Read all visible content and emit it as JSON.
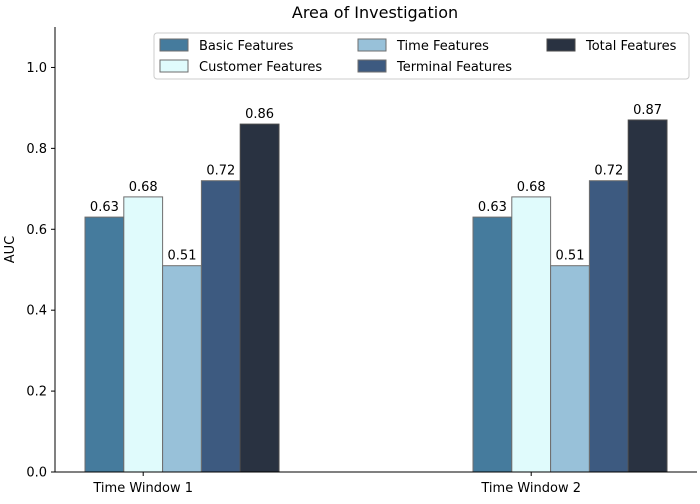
{
  "chart_data": {
    "type": "bar",
    "title": "Area of Investigation",
    "xlabel": "",
    "ylabel": "AUC",
    "ylim": [
      0,
      1.1
    ],
    "yticks": [
      "0.0",
      "0.2",
      "0.4",
      "0.6",
      "0.8",
      "1.0"
    ],
    "ytick_values": [
      0,
      0.2,
      0.4,
      0.6,
      0.8,
      1.0
    ],
    "categories": [
      "Time Window 1",
      "Time Window 2"
    ],
    "grid": false,
    "legend_placement": "top-right",
    "series": [
      {
        "name": "Basic Features",
        "color": "#457b9d",
        "edge": "#6e6e6e",
        "values": [
          0.63,
          0.63
        ],
        "labels": [
          "0.63",
          "0.63"
        ]
      },
      {
        "name": "Customer Features",
        "color": "#e0fbfc",
        "edge": "#6e6e6e",
        "values": [
          0.68,
          0.68
        ],
        "labels": [
          "0.68",
          "0.68"
        ]
      },
      {
        "name": "Time Features",
        "color": "#98c1d9",
        "edge": "#6e6e6e",
        "values": [
          0.51,
          0.51
        ],
        "labels": [
          "0.51",
          "0.51"
        ]
      },
      {
        "name": "Terminal Features",
        "color": "#3d5a80",
        "edge": "#6e6e6e",
        "values": [
          0.72,
          0.72
        ],
        "labels": [
          "0.72",
          "0.72"
        ]
      },
      {
        "name": "Total Features",
        "color": "#293241",
        "edge": "#4a4a4a",
        "values": [
          0.86,
          0.87
        ],
        "labels": [
          "0.86",
          "0.87"
        ]
      }
    ]
  }
}
